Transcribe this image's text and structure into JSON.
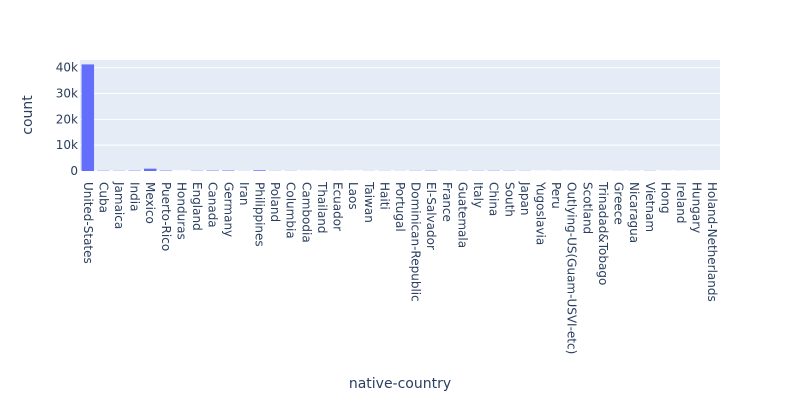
{
  "chart_data": {
    "type": "bar",
    "xlabel": "native-country",
    "ylabel": "count",
    "ylim": [
      0,
      43000
    ],
    "y_ticks": [
      0,
      10000,
      20000,
      30000,
      40000
    ],
    "y_tick_labels": [
      "0",
      "10k",
      "20k",
      "30k",
      "40k"
    ],
    "grid": true,
    "colors": {
      "bar": "#636efa",
      "plot_bg": "#e5ecf6",
      "grid": "#ffffff",
      "text": "#2a3f5f"
    },
    "categories": [
      "United-States",
      "Cuba",
      "Jamaica",
      "India",
      "Mexico",
      "Puerto-Rico",
      "Honduras",
      "England",
      "Canada",
      "Germany",
      "Iran",
      "Philippines",
      "Poland",
      "Columbia",
      "Cambodia",
      "Thailand",
      "Ecuador",
      "Laos",
      "Taiwan",
      "Haiti",
      "Portugal",
      "Dominican-Republic",
      "El-Salvador",
      "France",
      "Guatemala",
      "Italy",
      "China",
      "South",
      "Japan",
      "Yugoslavia",
      "Peru",
      "Outlying-US(Guam-USVI-etc)",
      "Scotland",
      "Trinadad&Tobago",
      "Greece",
      "Nicaragua",
      "Vietnam",
      "Hong",
      "Ireland",
      "Hungary",
      "Holand-Netherlands"
    ],
    "values": [
      41292,
      133,
      103,
      146,
      903,
      175,
      19,
      119,
      175,
      194,
      56,
      283,
      84,
      85,
      27,
      29,
      43,
      22,
      62,
      70,
      62,
      97,
      147,
      43,
      86,
      100,
      119,
      109,
      89,
      23,
      45,
      22,
      20,
      26,
      47,
      48,
      83,
      29,
      36,
      18,
      1
    ]
  }
}
